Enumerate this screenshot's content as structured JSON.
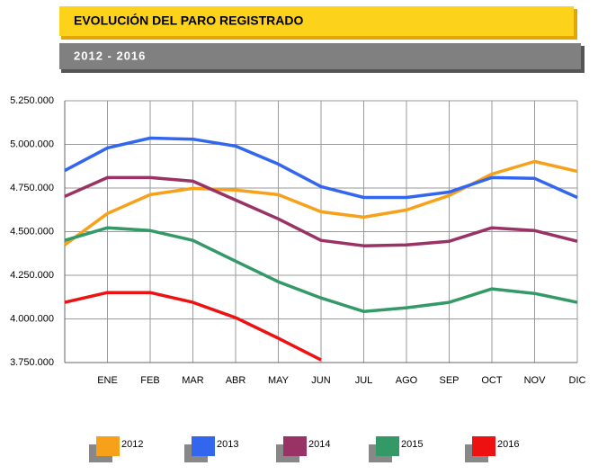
{
  "chart_data": {
    "type": "line",
    "title": "EVOLUCIÓN DEL PARO REGISTRADO",
    "subtitle": "2012 - 2016",
    "categories": [
      null,
      "ENE",
      "FEB",
      "MAR",
      "ABR",
      "MAY",
      "JUN",
      "JUL",
      "AGO",
      "SEP",
      "OCT",
      "NOV",
      "DIC"
    ],
    "series": [
      {
        "name": "2012",
        "color": "#f7a11a",
        "values": [
          4424000,
          4604000,
          4712000,
          4748000,
          4738000,
          4712000,
          4614000,
          4583000,
          4624000,
          4707000,
          4830000,
          4902000,
          4846000
        ]
      },
      {
        "name": "2013",
        "color": "#3366ee",
        "values": [
          4850000,
          4980000,
          5036000,
          5030000,
          4990000,
          4887000,
          4758000,
          4696000,
          4696000,
          4727000,
          4810000,
          4805000,
          4696000
        ]
      },
      {
        "name": "2014",
        "color": "#993366",
        "values": [
          4702000,
          4810000,
          4810000,
          4789000,
          4681000,
          4573000,
          4450000,
          4419000,
          4424000,
          4445000,
          4522000,
          4506000,
          4445000
        ]
      },
      {
        "name": "2015",
        "color": "#339966",
        "values": [
          4450000,
          4522000,
          4506000,
          4450000,
          4331000,
          4213000,
          4120000,
          4043000,
          4064000,
          4095000,
          4172000,
          4146000,
          4095000
        ]
      },
      {
        "name": "2016",
        "color": "#ee1111",
        "values": [
          4095000,
          4151000,
          4151000,
          4095000,
          4007000,
          3889000,
          3765000,
          null,
          null,
          null,
          null,
          null,
          null
        ]
      }
    ],
    "ylim": [
      3750000,
      5250000
    ],
    "yticks": [
      {
        "value": 3750000,
        "label": "3.750.000"
      },
      {
        "value": 4000000,
        "label": "4.000.000"
      },
      {
        "value": 4250000,
        "label": "4.250.000"
      },
      {
        "value": 4500000,
        "label": "4.500.000"
      },
      {
        "value": 4750000,
        "label": "4.750.000"
      },
      {
        "value": 5000000,
        "label": "5.000.000"
      },
      {
        "value": 5250000,
        "label": "5.250.000"
      }
    ],
    "grid": true
  }
}
